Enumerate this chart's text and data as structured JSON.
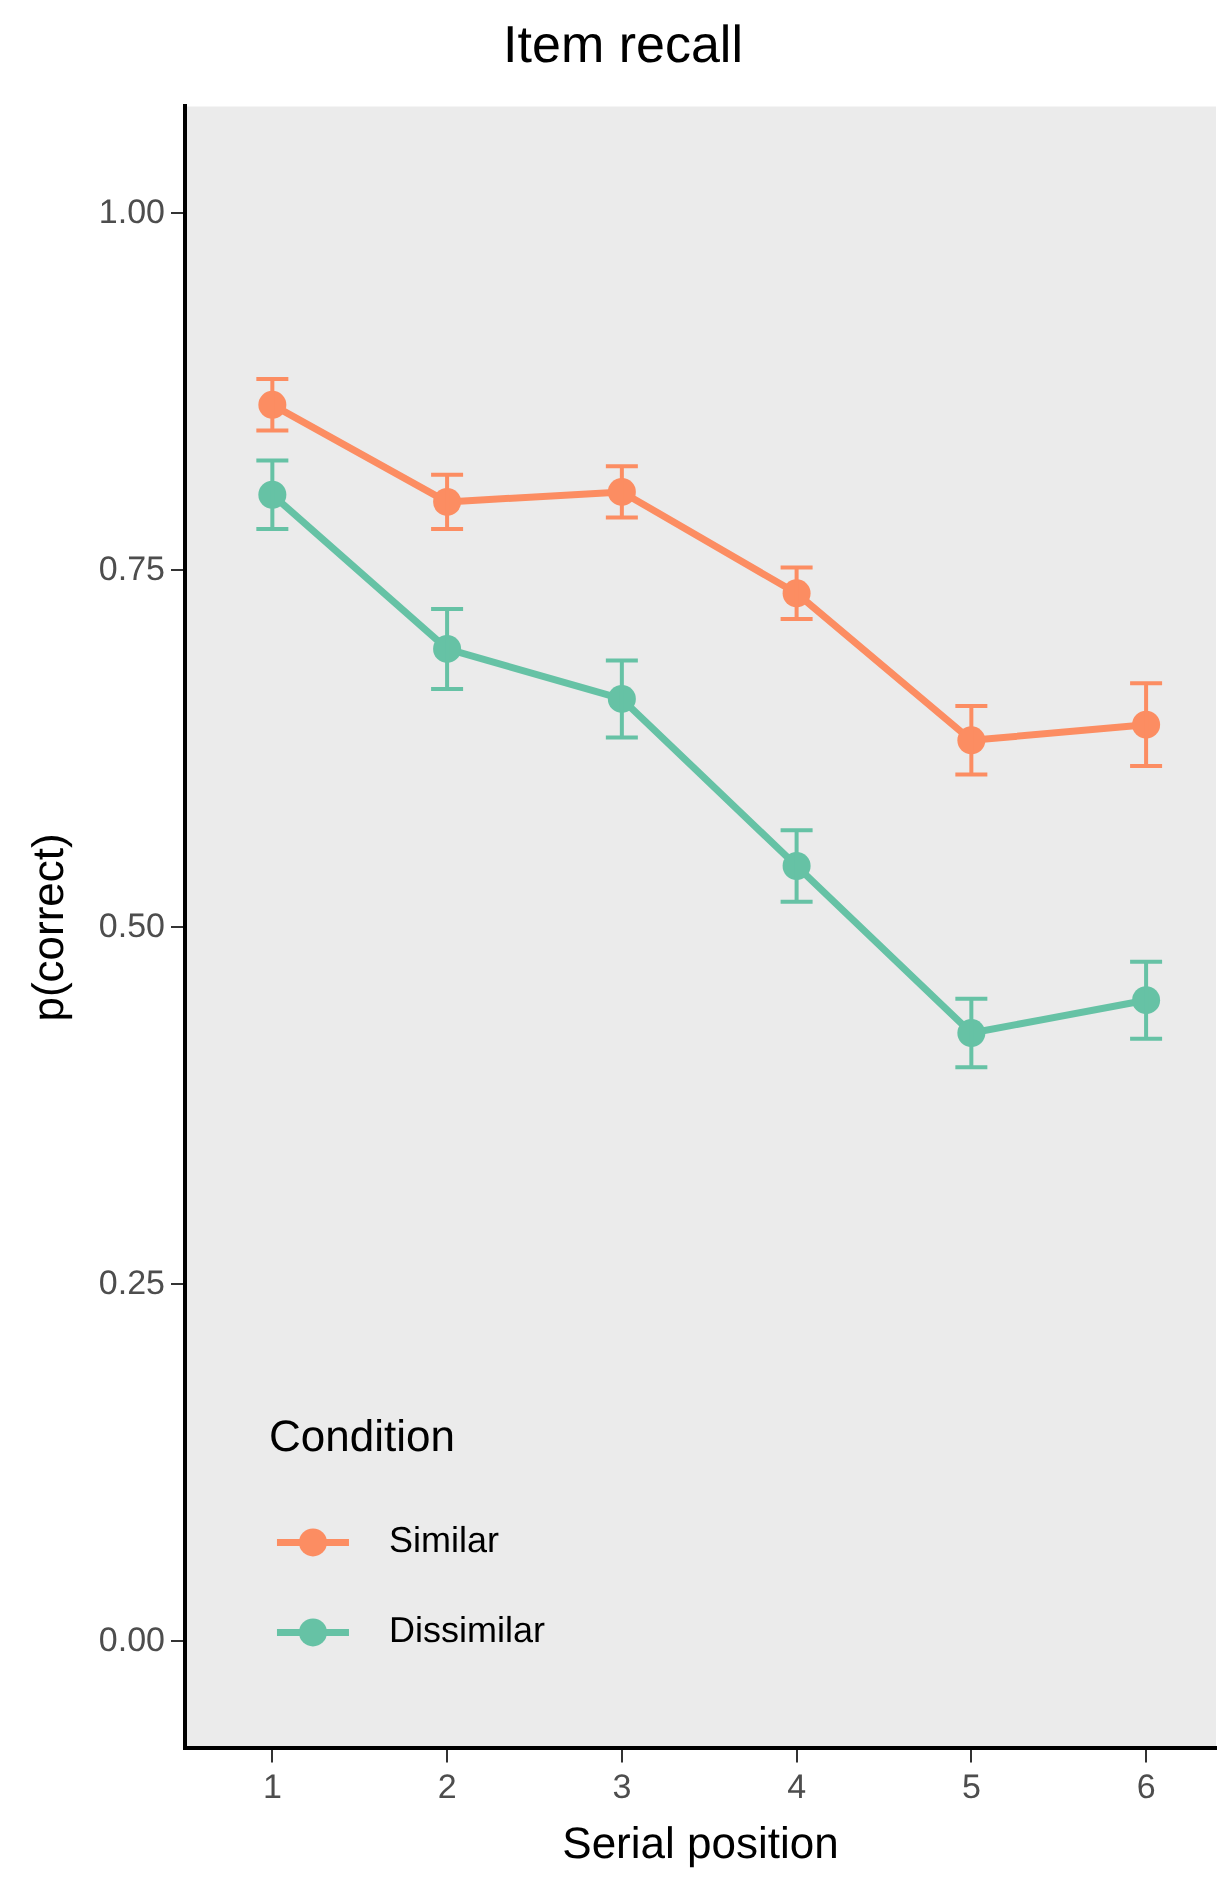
{
  "chart_data": {
    "type": "line",
    "title": "Item recall",
    "xlabel": "Serial position",
    "ylabel": "p(correct)",
    "legend_title": "Condition",
    "x": [
      1,
      2,
      3,
      4,
      5,
      6
    ],
    "series": [
      {
        "name": "Similar",
        "color": "#fc8d62",
        "values": [
          0.866,
          0.798,
          0.805,
          0.734,
          0.631,
          0.642
        ],
        "errors": [
          0.018,
          0.019,
          0.018,
          0.018,
          0.024,
          0.029
        ]
      },
      {
        "name": "Dissimilar",
        "color": "#66c2a5",
        "values": [
          0.803,
          0.695,
          0.66,
          0.543,
          0.426,
          0.449
        ],
        "errors": [
          0.024,
          0.028,
          0.027,
          0.025,
          0.024,
          0.027
        ]
      }
    ],
    "xlim": [
      0.5,
      6.4
    ],
    "xticks": [
      1,
      2,
      3,
      4,
      5,
      6
    ],
    "ylim": [
      -0.075,
      1.075
    ],
    "yticks": [
      {
        "value": 0,
        "label": "0.00"
      },
      {
        "value": 0.25,
        "label": "0.25"
      },
      {
        "value": 0.5,
        "label": "0.50"
      },
      {
        "value": 0.75,
        "label": "0.75"
      },
      {
        "value": 1,
        "label": "1.00"
      }
    ],
    "grid": false,
    "legend": "bottom left",
    "marker": "circle",
    "line_style": "solid"
  }
}
